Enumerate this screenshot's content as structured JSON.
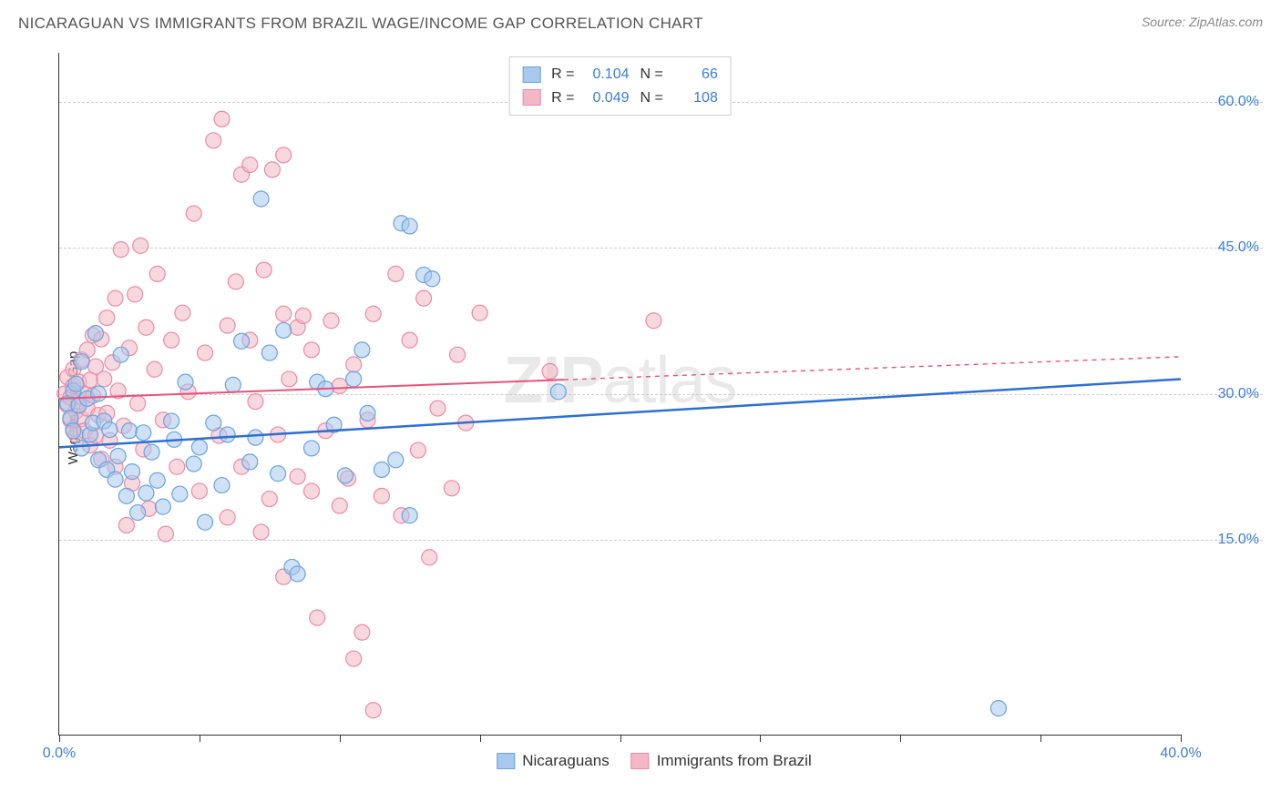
{
  "header": {
    "title": "NICARAGUAN VS IMMIGRANTS FROM BRAZIL WAGE/INCOME GAP CORRELATION CHART",
    "source": "Source: ZipAtlas.com"
  },
  "chart": {
    "type": "scatter",
    "y_axis_label": "Wage/Income Gap",
    "watermark": "ZIPatlas",
    "background_color": "#ffffff",
    "grid_color": "#cccccc",
    "axis_color": "#333333",
    "tick_label_color": "#3b7dd8",
    "xlim": [
      0,
      40
    ],
    "ylim": [
      -5,
      65
    ],
    "x_ticks": [
      0,
      5,
      10,
      15,
      20,
      25,
      30,
      35,
      40
    ],
    "x_tick_labels": {
      "0": "0.0%",
      "40": "40.0%"
    },
    "y_gridlines": [
      15,
      30,
      45,
      60
    ],
    "y_tick_labels": {
      "15": "15.0%",
      "30": "30.0%",
      "45": "45.0%",
      "60": "60.0%"
    },
    "marker_radius": 8.5,
    "marker_stroke_width": 1.2,
    "series": [
      {
        "name": "Nicaraguans",
        "fill_color": "#a8c8ec",
        "stroke_color": "#6ba3e0",
        "fill_opacity": 0.55,
        "R": "0.104",
        "N": "66",
        "trend": {
          "y_at_x0": 24.5,
          "y_at_x40": 31.5,
          "color": "#2d6fd4",
          "width": 2.5,
          "solid_until_x": 40
        },
        "points": [
          [
            0.3,
            29
          ],
          [
            0.4,
            27.5
          ],
          [
            0.5,
            30.3
          ],
          [
            0.5,
            26.2
          ],
          [
            0.6,
            31
          ],
          [
            0.7,
            28.8
          ],
          [
            0.8,
            24.4
          ],
          [
            0.8,
            33.3
          ],
          [
            1.0,
            29.5
          ],
          [
            1.1,
            25.8
          ],
          [
            1.2,
            27
          ],
          [
            1.3,
            36.2
          ],
          [
            1.4,
            23.2
          ],
          [
            1.4,
            30
          ],
          [
            1.6,
            27.2
          ],
          [
            1.7,
            22.2
          ],
          [
            1.8,
            26.3
          ],
          [
            2.0,
            21.2
          ],
          [
            2.1,
            23.6
          ],
          [
            2.2,
            34
          ],
          [
            2.4,
            19.5
          ],
          [
            2.5,
            26.2
          ],
          [
            2.6,
            22
          ],
          [
            2.8,
            17.8
          ],
          [
            3.0,
            26
          ],
          [
            3.1,
            19.8
          ],
          [
            3.3,
            24
          ],
          [
            3.5,
            21.1
          ],
          [
            3.7,
            18.4
          ],
          [
            4.0,
            27.2
          ],
          [
            4.1,
            25.3
          ],
          [
            4.3,
            19.7
          ],
          [
            4.5,
            31.2
          ],
          [
            4.8,
            22.8
          ],
          [
            5.0,
            24.5
          ],
          [
            5.2,
            16.8
          ],
          [
            5.5,
            27
          ],
          [
            5.8,
            20.6
          ],
          [
            6.0,
            25.8
          ],
          [
            6.2,
            30.9
          ],
          [
            6.5,
            35.4
          ],
          [
            6.8,
            23
          ],
          [
            7.0,
            25.5
          ],
          [
            7.2,
            50
          ],
          [
            7.5,
            34.2
          ],
          [
            7.8,
            21.8
          ],
          [
            8.0,
            36.5
          ],
          [
            8.3,
            12.2
          ],
          [
            8.5,
            11.5
          ],
          [
            9.0,
            24.4
          ],
          [
            9.2,
            31.2
          ],
          [
            9.5,
            30.5
          ],
          [
            9.8,
            26.8
          ],
          [
            10.2,
            21.6
          ],
          [
            10.5,
            31.5
          ],
          [
            10.8,
            34.5
          ],
          [
            11.0,
            28
          ],
          [
            11.5,
            22.2
          ],
          [
            12.0,
            23.2
          ],
          [
            12.2,
            47.5
          ],
          [
            12.5,
            47.2
          ],
          [
            13.0,
            42.2
          ],
          [
            13.3,
            41.8
          ],
          [
            17.8,
            30.2
          ],
          [
            33.5,
            -2.3
          ],
          [
            12.5,
            17.5
          ]
        ]
      },
      {
        "name": "Immigrants from Brazil",
        "fill_color": "#f3b8c5",
        "stroke_color": "#ec8ba3",
        "fill_opacity": 0.55,
        "R": "0.049",
        "N": "108",
        "trend": {
          "y_at_x0": 29.5,
          "y_at_x40": 33.8,
          "color": "#e8527a",
          "width": 2,
          "solid_until_x": 18
        },
        "points": [
          [
            0.2,
            30
          ],
          [
            0.3,
            28.8
          ],
          [
            0.3,
            31.7
          ],
          [
            0.4,
            27.3
          ],
          [
            0.4,
            29.6
          ],
          [
            0.5,
            30.8
          ],
          [
            0.5,
            26.4
          ],
          [
            0.5,
            32.5
          ],
          [
            0.6,
            28.2
          ],
          [
            0.6,
            25.8
          ],
          [
            0.7,
            31.2
          ],
          [
            0.7,
            29.2
          ],
          [
            0.8,
            27.4
          ],
          [
            0.8,
            33.5
          ],
          [
            0.9,
            30
          ],
          [
            0.9,
            26.2
          ],
          [
            1.0,
            28.5
          ],
          [
            1.0,
            34.5
          ],
          [
            1.1,
            31.4
          ],
          [
            1.1,
            24.7
          ],
          [
            1.2,
            29.8
          ],
          [
            1.2,
            36
          ],
          [
            1.3,
            25.7
          ],
          [
            1.3,
            32.8
          ],
          [
            1.4,
            27.8
          ],
          [
            1.5,
            35.6
          ],
          [
            1.5,
            23.3
          ],
          [
            1.6,
            31.5
          ],
          [
            1.7,
            28
          ],
          [
            1.7,
            37.8
          ],
          [
            1.8,
            25.2
          ],
          [
            1.9,
            33.2
          ],
          [
            2.0,
            22.5
          ],
          [
            2.0,
            39.8
          ],
          [
            2.1,
            30.3
          ],
          [
            2.2,
            44.8
          ],
          [
            2.3,
            26.7
          ],
          [
            2.4,
            16.5
          ],
          [
            2.5,
            34.7
          ],
          [
            2.6,
            20.8
          ],
          [
            2.7,
            40.2
          ],
          [
            2.8,
            29
          ],
          [
            2.9,
            45.2
          ],
          [
            3.0,
            24.3
          ],
          [
            3.1,
            36.8
          ],
          [
            3.2,
            18.2
          ],
          [
            3.4,
            32.5
          ],
          [
            3.5,
            42.3
          ],
          [
            3.7,
            27.3
          ],
          [
            3.8,
            15.6
          ],
          [
            4.0,
            35.5
          ],
          [
            4.2,
            22.5
          ],
          [
            4.4,
            38.3
          ],
          [
            4.6,
            30.2
          ],
          [
            4.8,
            48.5
          ],
          [
            5.0,
            20
          ],
          [
            5.2,
            34.2
          ],
          [
            5.5,
            56
          ],
          [
            5.7,
            25.7
          ],
          [
            5.8,
            58.2
          ],
          [
            6.0,
            37
          ],
          [
            6.0,
            17.3
          ],
          [
            6.3,
            41.5
          ],
          [
            6.5,
            52.5
          ],
          [
            6.5,
            22.5
          ],
          [
            6.8,
            53.5
          ],
          [
            6.8,
            35.5
          ],
          [
            7.0,
            29.2
          ],
          [
            7.2,
            15.8
          ],
          [
            7.3,
            42.7
          ],
          [
            7.5,
            19.2
          ],
          [
            7.6,
            53
          ],
          [
            7.8,
            25.8
          ],
          [
            8.0,
            38.2
          ],
          [
            8.0,
            54.5
          ],
          [
            8.2,
            31.5
          ],
          [
            8.5,
            21.5
          ],
          [
            8.5,
            36.8
          ],
          [
            8.7,
            38
          ],
          [
            9.0,
            20
          ],
          [
            9.0,
            34.5
          ],
          [
            9.2,
            7
          ],
          [
            9.5,
            26.2
          ],
          [
            9.7,
            37.5
          ],
          [
            10.0,
            18.5
          ],
          [
            10.0,
            30.8
          ],
          [
            10.3,
            21.3
          ],
          [
            10.5,
            33
          ],
          [
            10.8,
            5.5
          ],
          [
            11.0,
            27.3
          ],
          [
            11.2,
            38.2
          ],
          [
            11.5,
            19.5
          ],
          [
            11.2,
            -2.5
          ],
          [
            12.0,
            42.3
          ],
          [
            12.2,
            17.5
          ],
          [
            12.5,
            35.5
          ],
          [
            12.8,
            24.2
          ],
          [
            13.0,
            39.8
          ],
          [
            13.2,
            13.2
          ],
          [
            13.5,
            28.5
          ],
          [
            14.0,
            20.3
          ],
          [
            14.2,
            34
          ],
          [
            14.5,
            27
          ],
          [
            15.0,
            38.3
          ],
          [
            17.5,
            32.3
          ],
          [
            21.2,
            37.5
          ],
          [
            10.5,
            2.8
          ],
          [
            8.0,
            11.2
          ]
        ]
      }
    ],
    "top_legend": {
      "border_color": "#cccccc",
      "stat_label_color": "#333333",
      "stat_value_color": "#3b7dd8"
    },
    "bottom_legend": {
      "text_color": "#333333"
    }
  }
}
